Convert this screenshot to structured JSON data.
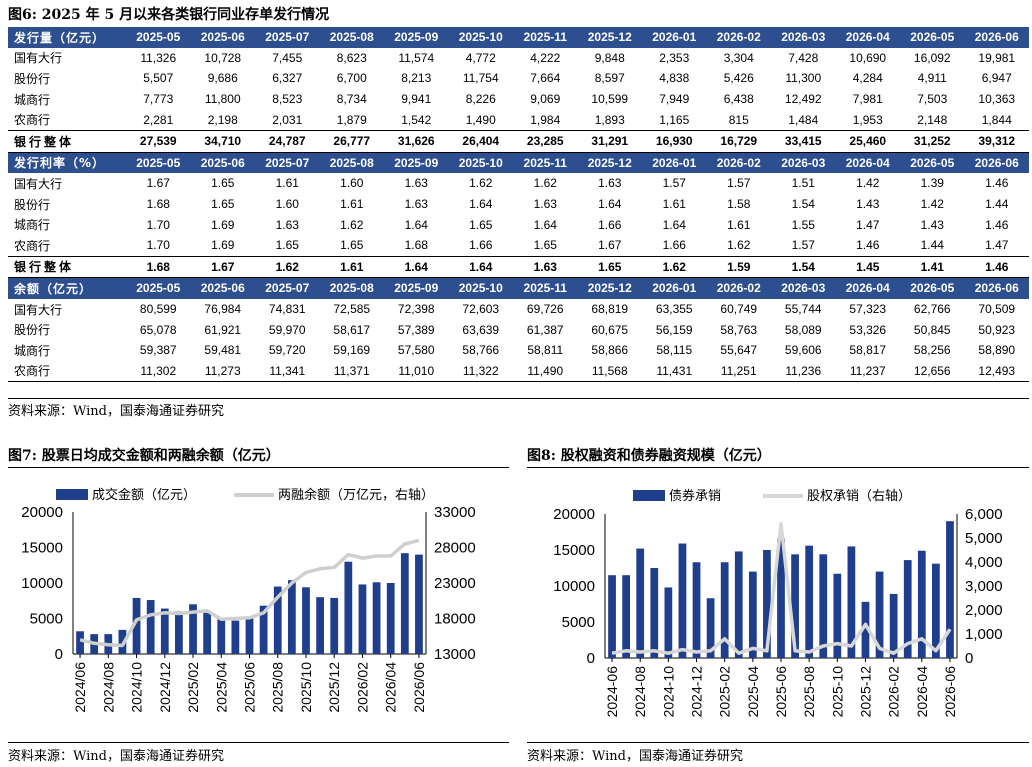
{
  "fig6": {
    "title": "图6:  2025 年 5 月以来各类银行同业存单发行情况",
    "months": [
      "2025-05",
      "2025-06",
      "2025-07",
      "2025-08",
      "2025-09",
      "2025-10",
      "2025-11",
      "2025-12",
      "2026-01",
      "2026-02",
      "2026-03",
      "2026-04",
      "2026-05",
      "2026-06"
    ],
    "sections": [
      {
        "header": "发行量（亿元）",
        "rows": [
          {
            "label": "国有大行",
            "values": [
              "11,326",
              "10,728",
              "7,455",
              "8,623",
              "11,574",
              "4,772",
              "4,222",
              "9,848",
              "2,353",
              "3,304",
              "7,428",
              "10,690",
              "16,092",
              "19,981"
            ]
          },
          {
            "label": "股份行",
            "values": [
              "5,507",
              "9,686",
              "6,327",
              "6,700",
              "8,213",
              "11,754",
              "7,664",
              "8,597",
              "4,838",
              "5,426",
              "11,300",
              "4,284",
              "4,911",
              "6,947"
            ]
          },
          {
            "label": "城商行",
            "values": [
              "7,773",
              "11,800",
              "8,523",
              "8,734",
              "9,941",
              "8,226",
              "9,069",
              "10,599",
              "7,949",
              "6,438",
              "12,492",
              "7,981",
              "7,503",
              "10,363"
            ]
          },
          {
            "label": "农商行",
            "values": [
              "2,281",
              "2,198",
              "2,031",
              "1,879",
              "1,542",
              "1,490",
              "1,984",
              "1,893",
              "1,165",
              "815",
              "1,484",
              "1,953",
              "2,148",
              "1,844"
            ]
          }
        ],
        "total": {
          "label": "银行整体",
          "values": [
            "27,539",
            "34,710",
            "24,787",
            "26,777",
            "31,626",
            "26,404",
            "23,285",
            "31,291",
            "16,930",
            "16,729",
            "33,415",
            "25,460",
            "31,252",
            "39,312"
          ]
        }
      },
      {
        "header": "发行利率（%）",
        "rows": [
          {
            "label": "国有大行",
            "values": [
              "1.67",
              "1.65",
              "1.61",
              "1.60",
              "1.63",
              "1.62",
              "1.62",
              "1.63",
              "1.57",
              "1.57",
              "1.51",
              "1.42",
              "1.39",
              "1.46"
            ]
          },
          {
            "label": "股份行",
            "values": [
              "1.68",
              "1.65",
              "1.60",
              "1.61",
              "1.63",
              "1.64",
              "1.63",
              "1.64",
              "1.61",
              "1.58",
              "1.54",
              "1.43",
              "1.42",
              "1.44"
            ]
          },
          {
            "label": "城商行",
            "values": [
              "1.70",
              "1.69",
              "1.63",
              "1.62",
              "1.64",
              "1.65",
              "1.64",
              "1.66",
              "1.64",
              "1.61",
              "1.55",
              "1.47",
              "1.43",
              "1.46"
            ]
          },
          {
            "label": "农商行",
            "values": [
              "1.70",
              "1.69",
              "1.65",
              "1.65",
              "1.68",
              "1.66",
              "1.65",
              "1.67",
              "1.66",
              "1.62",
              "1.57",
              "1.46",
              "1.44",
              "1.47"
            ]
          }
        ],
        "total": {
          "label": "银行整体",
          "values": [
            "1.68",
            "1.67",
            "1.62",
            "1.61",
            "1.64",
            "1.64",
            "1.63",
            "1.65",
            "1.62",
            "1.59",
            "1.54",
            "1.45",
            "1.41",
            "1.46"
          ]
        }
      },
      {
        "header": "余额（亿元）",
        "rows": [
          {
            "label": "国有大行",
            "values": [
              "80,599",
              "76,984",
              "74,831",
              "72,585",
              "72,398",
              "72,603",
              "69,726",
              "68,819",
              "63,355",
              "60,749",
              "55,744",
              "57,323",
              "62,766",
              "70,509"
            ]
          },
          {
            "label": "股份行",
            "values": [
              "65,078",
              "61,921",
              "59,970",
              "58,617",
              "57,389",
              "63,639",
              "61,387",
              "60,675",
              "56,159",
              "58,763",
              "58,089",
              "53,326",
              "50,845",
              "50,923"
            ]
          },
          {
            "label": "城商行",
            "values": [
              "59,387",
              "59,481",
              "59,720",
              "59,169",
              "57,580",
              "58,766",
              "58,811",
              "58,866",
              "58,115",
              "55,647",
              "59,606",
              "58,817",
              "58,256",
              "58,890"
            ]
          },
          {
            "label": "农商行",
            "values": [
              "11,302",
              "11,273",
              "11,341",
              "11,371",
              "11,010",
              "11,322",
              "11,490",
              "11,568",
              "11,431",
              "11,251",
              "11,236",
              "11,237",
              "12,656",
              "12,493"
            ]
          }
        ]
      }
    ],
    "source": "资料来源：Wind，国泰海通证券研究"
  },
  "chart_data": [
    {
      "type": "bar",
      "title": "图7:  股票日均成交金额和两融余额（亿元）",
      "x": [
        "2024/06",
        "2024/07",
        "2024/08",
        "2024/09",
        "2024/10",
        "2024/11",
        "2024/12",
        "2025/01",
        "2025/02",
        "2025/03",
        "2025/04",
        "2025/05",
        "2025/06",
        "2025/07",
        "2025/08",
        "2025/09",
        "2025/10",
        "2025/11",
        "2025/12",
        "2026/01",
        "2026/02",
        "2026/03",
        "2026/04",
        "2026/05",
        "2026/06"
      ],
      "x_tick_labels": [
        "2024/06",
        "2024/08",
        "2024/10",
        "2024/12",
        "2025/02",
        "2025/04",
        "2025/06",
        "2025/08",
        "2025/10",
        "2025/12",
        "2026/02",
        "2026/04",
        "2026/06"
      ],
      "series": [
        {
          "name": "成交金额（亿元）",
          "type": "bar",
          "axis": "left",
          "color": "#1f3e8c",
          "values": [
            3200,
            2800,
            2800,
            3400,
            7900,
            7600,
            6400,
            6000,
            7000,
            5800,
            4900,
            4700,
            5000,
            6800,
            9500,
            10400,
            9400,
            8000,
            7900,
            13000,
            9800,
            10100,
            10000,
            14200,
            14000
          ]
        },
        {
          "name": "两融余额（万亿元，右轴）",
          "type": "line",
          "axis": "right",
          "color": "#cfcfcf",
          "values": [
            15000,
            14500,
            14300,
            14200,
            17800,
            18500,
            18800,
            18700,
            18900,
            19100,
            17900,
            18000,
            18100,
            18800,
            21000,
            23000,
            24500,
            25000,
            25200,
            27000,
            26500,
            26800,
            26800,
            28500,
            29000
          ]
        }
      ],
      "ylim_left": [
        0,
        20000
      ],
      "ylim_right": [
        13000,
        33000
      ],
      "yticks_left": [
        "0",
        "5000",
        "10000",
        "15000",
        "20000"
      ],
      "yticks_right": [
        "13000",
        "18000",
        "23000",
        "28000",
        "33000"
      ],
      "legend": "top",
      "source": "资料来源：Wind，国泰海通证券研究"
    },
    {
      "type": "bar",
      "title": "图8:  股权融资和债券融资规模（亿元）",
      "x": [
        "2024-06",
        "2024-07",
        "2024-08",
        "2024-09",
        "2024-10",
        "2024-11",
        "2024-12",
        "2025-01",
        "2025-02",
        "2025-03",
        "2025-04",
        "2025-05",
        "2025-06",
        "2025-07",
        "2025-08",
        "2025-09",
        "2025-10",
        "2025-11",
        "2025-12",
        "2026-01",
        "2026-02",
        "2026-03",
        "2026-04",
        "2026-05",
        "2026-06"
      ],
      "x_tick_labels": [
        "2024-06",
        "2024-08",
        "2024-10",
        "2024-12",
        "2025-02",
        "2025-04",
        "2025-06",
        "2025-08",
        "2025-10",
        "2025-12",
        "2026-02",
        "2026-04",
        "2026-06"
      ],
      "series": [
        {
          "name": "债券承销",
          "type": "bar",
          "axis": "left",
          "color": "#1f3e8c",
          "values": [
            11500,
            11500,
            15200,
            12500,
            9800,
            15900,
            13300,
            8300,
            13300,
            14800,
            12000,
            15000,
            16600,
            14400,
            15600,
            14400,
            11700,
            15500,
            7800,
            12000,
            8900,
            13600,
            14900,
            13100,
            19000
          ]
        },
        {
          "name": "股权承销（右轴）",
          "type": "line",
          "axis": "right",
          "color": "#d7d7d7",
          "values": [
            200,
            300,
            250,
            300,
            200,
            350,
            250,
            300,
            800,
            200,
            400,
            300,
            5600,
            300,
            250,
            500,
            600,
            500,
            1400,
            400,
            200,
            600,
            800,
            300,
            1200
          ]
        }
      ],
      "ylim_left": [
        0,
        20000
      ],
      "ylim_right": [
        0,
        6000
      ],
      "yticks_left": [
        "0",
        "5000",
        "10000",
        "15000",
        "20000"
      ],
      "yticks_right": [
        "0",
        "1,000",
        "2,000",
        "3,000",
        "4,000",
        "5,000",
        "6,000"
      ],
      "legend": "top",
      "source": "资料来源：Wind，国泰海通证券研究"
    }
  ]
}
